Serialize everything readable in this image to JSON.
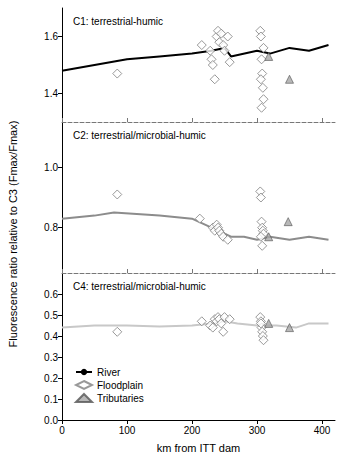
{
  "chart_data": [
    {
      "type": "line",
      "title": "C1: terrestrial-humic",
      "xlim": [
        0,
        420
      ],
      "xticks": [
        0,
        100,
        200,
        300,
        400
      ],
      "ylim": [
        1.3,
        1.7
      ],
      "yticks": [
        1.4,
        1.6
      ],
      "tick_labels": "y",
      "grid": false,
      "series": [
        {
          "name": "River",
          "type": "line",
          "color": "#000000",
          "marker": "none",
          "line_style": "solid",
          "x": [
            0,
            50,
            100,
            150,
            200,
            230,
            250,
            260,
            300,
            320,
            350,
            380,
            410
          ],
          "values": [
            1.48,
            1.5,
            1.52,
            1.53,
            1.54,
            1.55,
            1.56,
            1.53,
            1.55,
            1.54,
            1.56,
            1.55,
            1.57
          ]
        },
        {
          "name": "Floodplain",
          "type": "scatter",
          "color": "#808080",
          "marker": "diamond",
          "x": [
            85,
            215,
            228,
            230,
            232,
            235,
            238,
            240,
            242,
            245,
            248,
            250,
            255,
            258,
            305,
            306,
            307,
            308,
            309,
            310,
            307,
            310,
            306
          ],
          "values": [
            1.47,
            1.57,
            1.55,
            1.52,
            1.5,
            1.45,
            1.6,
            1.62,
            1.58,
            1.61,
            1.57,
            1.55,
            1.6,
            1.51,
            1.62,
            1.6,
            1.52,
            1.47,
            1.42,
            1.38,
            1.35,
            1.56,
            1.45
          ]
        },
        {
          "name": "Tributaries",
          "type": "scatter",
          "color": "#a6a6a6",
          "marker": "triangle",
          "x": [
            318,
            350
          ],
          "values": [
            1.53,
            1.45
          ]
        }
      ]
    },
    {
      "type": "line",
      "title": "C2: terrestrial/microbial-humic",
      "ylabel": "Fluorescence ratio relative to C3 (Fmax/Fmax)",
      "xlim": [
        0,
        420
      ],
      "xticks": [
        0,
        100,
        200,
        300,
        400
      ],
      "ylim": [
        0.65,
        1.15
      ],
      "yticks": [
        0.8,
        {
          "value": 1,
          "label": "1.0"
        }
      ],
      "tick_labels": "y",
      "grid": false,
      "series": [
        {
          "name": "River",
          "type": "line",
          "color": "#8c8c8c",
          "marker": "none",
          "line_style": "solid",
          "x": [
            0,
            50,
            80,
            150,
            200,
            230,
            250,
            260,
            280,
            300,
            320,
            350,
            380,
            410
          ],
          "values": [
            0.83,
            0.84,
            0.85,
            0.84,
            0.83,
            0.8,
            0.78,
            0.77,
            0.77,
            0.76,
            0.77,
            0.76,
            0.77,
            0.76
          ]
        },
        {
          "name": "Floodplain",
          "type": "scatter",
          "color": "#808080",
          "marker": "diamond",
          "x": [
            85,
            212,
            232,
            235,
            238,
            240,
            242,
            245,
            248,
            255,
            305,
            306,
            307,
            308,
            309,
            310,
            306,
            308
          ],
          "values": [
            0.91,
            0.83,
            0.8,
            0.79,
            0.81,
            0.8,
            0.79,
            0.78,
            0.77,
            0.76,
            0.92,
            0.9,
            0.82,
            0.8,
            0.79,
            0.78,
            0.77,
            0.74
          ]
        },
        {
          "name": "Tributaries",
          "type": "scatter",
          "color": "#a6a6a6",
          "marker": "triangle",
          "x": [
            318,
            348
          ],
          "values": [
            0.77,
            0.82
          ]
        }
      ]
    },
    {
      "type": "line",
      "title": "C4: terrestrial/microbial-humic",
      "xlabel": "km from ITT dam",
      "xlim": [
        0,
        420
      ],
      "xticks": [
        0,
        100,
        200,
        300,
        400
      ],
      "ylim": [
        0,
        0.7
      ],
      "yticks": [
        {
          "value": 0,
          "label": "0.0"
        },
        0.1,
        0.2,
        0.3,
        0.4,
        0.5,
        0.6
      ],
      "grid": false,
      "legend": "lower left",
      "series": [
        {
          "name": "River",
          "type": "line",
          "color": "#c8c8c8",
          "marker": "none",
          "line_style": "solid",
          "x": [
            0,
            50,
            100,
            150,
            200,
            230,
            250,
            270,
            300,
            330,
            360,
            380,
            410
          ],
          "values": [
            0.44,
            0.45,
            0.45,
            0.445,
            0.45,
            0.46,
            0.47,
            0.46,
            0.45,
            0.45,
            0.44,
            0.46,
            0.46
          ]
        },
        {
          "name": "Floodplain",
          "type": "scatter",
          "color": "#808080",
          "marker": "diamond",
          "x": [
            85,
            215,
            228,
            232,
            235,
            238,
            240,
            242,
            245,
            248,
            250,
            258,
            305,
            306,
            307,
            308,
            309,
            310,
            306
          ],
          "values": [
            0.42,
            0.47,
            0.45,
            0.44,
            0.48,
            0.47,
            0.49,
            0.48,
            0.46,
            0.42,
            0.49,
            0.48,
            0.49,
            0.47,
            0.44,
            0.42,
            0.4,
            0.38,
            0.46
          ]
        },
        {
          "name": "Tributaries",
          "type": "scatter",
          "color": "#a6a6a6",
          "marker": "triangle",
          "x": [
            318,
            350
          ],
          "values": [
            0.46,
            0.44
          ]
        }
      ]
    }
  ]
}
